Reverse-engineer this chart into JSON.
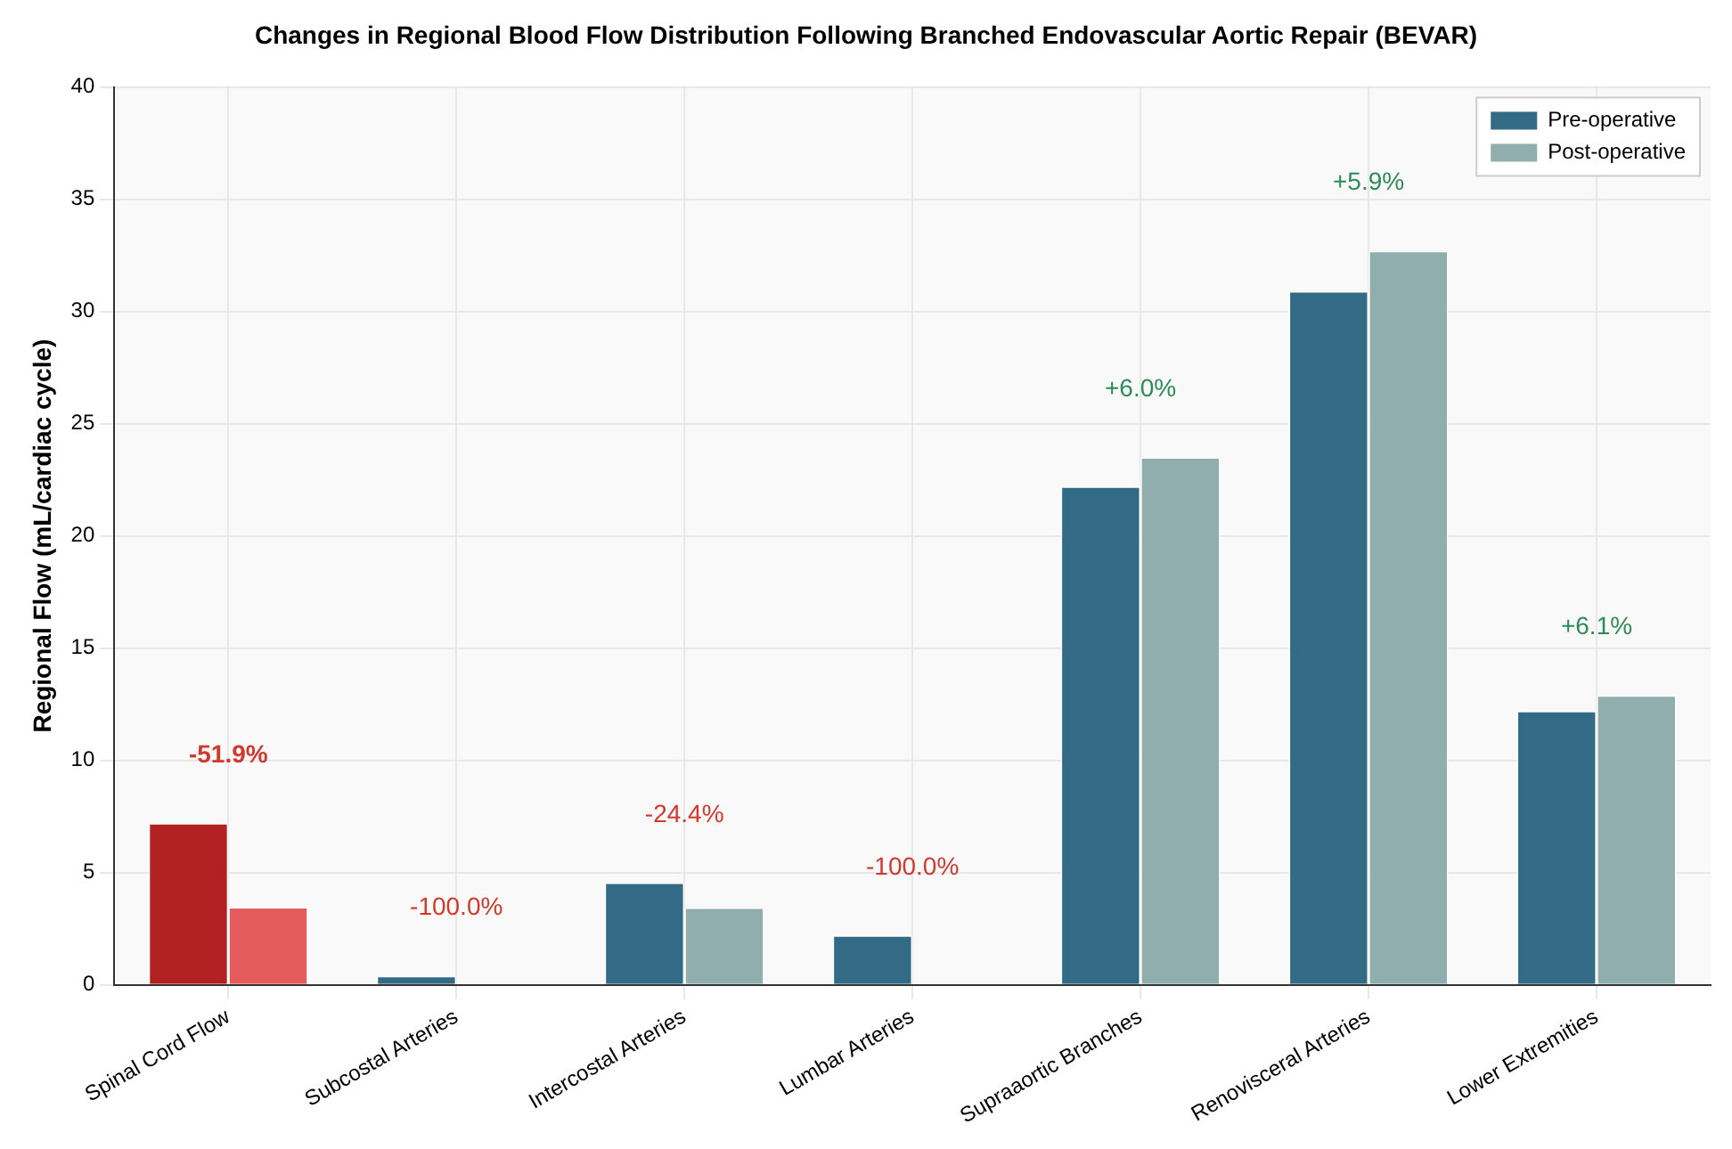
{
  "chart_data": {
    "type": "bar",
    "title": "Changes in Regional Blood Flow Distribution Following Branched Endovascular Aortic Repair (BEVAR)",
    "ylabel": "Regional Flow (mL/cardiac cycle)",
    "categories": [
      "Spinal Cord Flow",
      "Subcostal Arteries",
      "Intercostal Arteries",
      "Lumbar Arteries",
      "Supraaortic Branches",
      "Renovisceral Arteries",
      "Lower Extremities"
    ],
    "series": [
      {
        "name": "Pre-operative",
        "color": "#336b87",
        "colors": [
          "#b22222",
          "#336b87",
          "#336b87",
          "#336b87",
          "#336b87",
          "#336b87",
          "#336b87"
        ],
        "values": [
          7.2,
          0.4,
          4.55,
          2.2,
          22.2,
          30.9,
          12.2
        ]
      },
      {
        "name": "Post-operative",
        "color": "#90aeae",
        "colors": [
          "#e55b5b",
          "#90aeae",
          "#90aeae",
          "#90aeae",
          "#90aeae",
          "#90aeae",
          "#90aeae"
        ],
        "values": [
          3.46,
          0,
          3.44,
          0,
          23.5,
          32.7,
          12.9
        ]
      }
    ],
    "annotations": [
      "-51.9%",
      "-100.0%",
      "-24.4%",
      "-100.0%",
      "+6.0%",
      "+5.9%",
      "+6.1%"
    ],
    "ylim": [
      0,
      40
    ],
    "yticks": [
      0,
      5,
      10,
      15,
      20,
      25,
      30,
      35,
      40
    ],
    "grid": true,
    "legend": "top right"
  }
}
